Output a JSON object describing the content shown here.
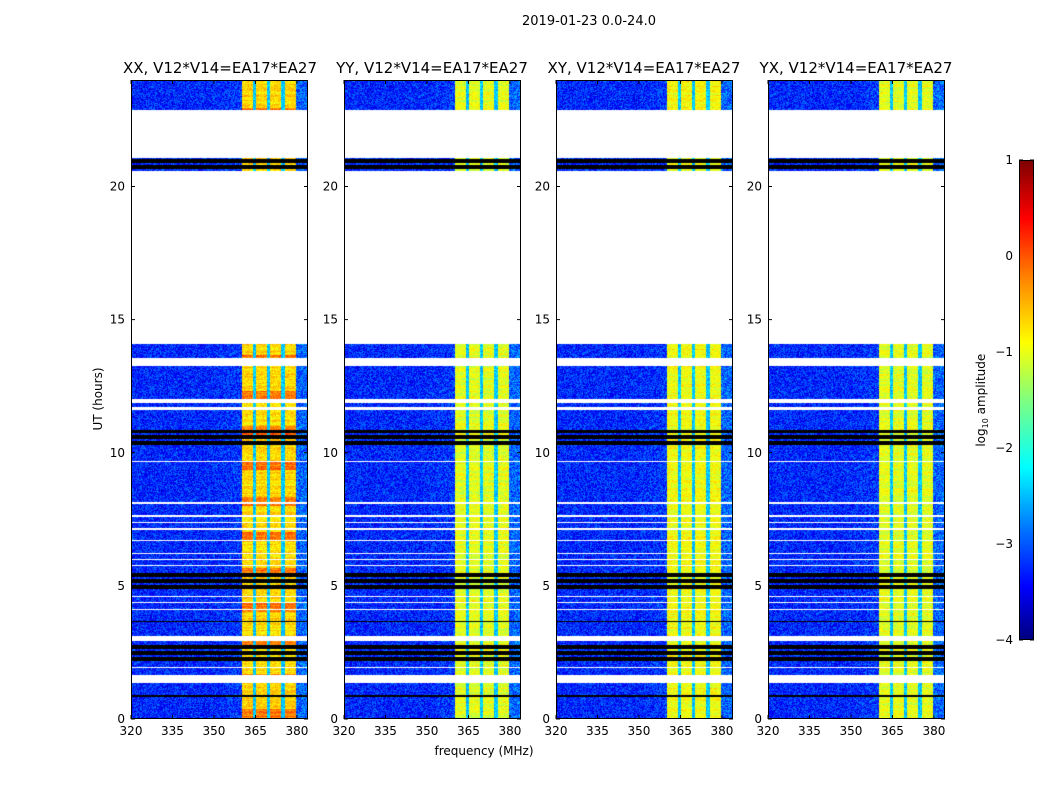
{
  "chart_data": {
    "type": "heatmap",
    "title": "2019-01-23 0.0-24.0",
    "xlabel": "frequency (MHz)",
    "ylabel": "UT (hours)",
    "xlim": [
      320,
      384
    ],
    "ylim": [
      0,
      24
    ],
    "xticks": [
      "320",
      "335",
      "350",
      "365",
      "380"
    ],
    "xtick_values": [
      320,
      335,
      350,
      365,
      380
    ],
    "yticks": [
      "0",
      "5",
      "10",
      "15",
      "20"
    ],
    "ytick_values": [
      0,
      5,
      10,
      15,
      20
    ],
    "panels": [
      {
        "title": "XX, V12*V14=EA17*EA27",
        "band_level": -0.7,
        "bg_level": -3.2
      },
      {
        "title": "YY, V12*V14=EA17*EA27",
        "band_level": -1.0,
        "bg_level": -3.2
      },
      {
        "title": "XY, V12*V14=EA17*EA27",
        "band_level": -0.9,
        "bg_level": -3.2
      },
      {
        "title": "YX, V12*V14=EA17*EA27",
        "band_level": -1.0,
        "bg_level": -3.2
      }
    ],
    "bright_band_mhz": [
      360.4,
      380
    ],
    "band_gaps_mhz": [
      364.8,
      369.8,
      375.2
    ],
    "data_intervals_hours": [
      [
        0,
        14.1
      ],
      [
        20.6,
        21.1
      ],
      [
        22.9,
        24
      ]
    ],
    "white_gaps_hours": [
      [
        13.25,
        13.58
      ],
      [
        11.88,
        12.0
      ],
      [
        11.62,
        11.7
      ],
      [
        9.64,
        9.7
      ],
      [
        8.07,
        8.12
      ],
      [
        7.58,
        7.63
      ],
      [
        7.33,
        7.37
      ],
      [
        7.1,
        7.15
      ],
      [
        6.65,
        6.7
      ],
      [
        6.17,
        6.22
      ],
      [
        5.94,
        5.99
      ],
      [
        5.71,
        5.76
      ],
      [
        4.56,
        4.6
      ],
      [
        4.33,
        4.37
      ],
      [
        4.08,
        4.12
      ],
      [
        2.9,
        3.08
      ],
      [
        1.88,
        1.92
      ],
      [
        1.31,
        1.61
      ]
    ],
    "flagged_black_hours": [
      [
        10.2,
        10.84
      ],
      [
        4.84,
        5.5
      ],
      [
        3.62,
        3.66
      ],
      [
        3.24,
        3.28
      ],
      [
        2.14,
        2.78
      ],
      [
        0.81,
        0.85
      ],
      [
        0.28,
        0.32
      ],
      [
        20.6,
        21.1
      ]
    ],
    "colorbar": {
      "label": "log10 amplitude",
      "label_main": "log",
      "label_sub": "10",
      "label_rest": " amplitude",
      "range": [
        -4,
        1
      ],
      "ticks": [
        "1",
        "0",
        "−1",
        "−2",
        "−3",
        "−4"
      ],
      "tick_values": [
        1,
        0,
        -1,
        -2,
        -3,
        -4
      ],
      "colormap": "jet"
    }
  }
}
